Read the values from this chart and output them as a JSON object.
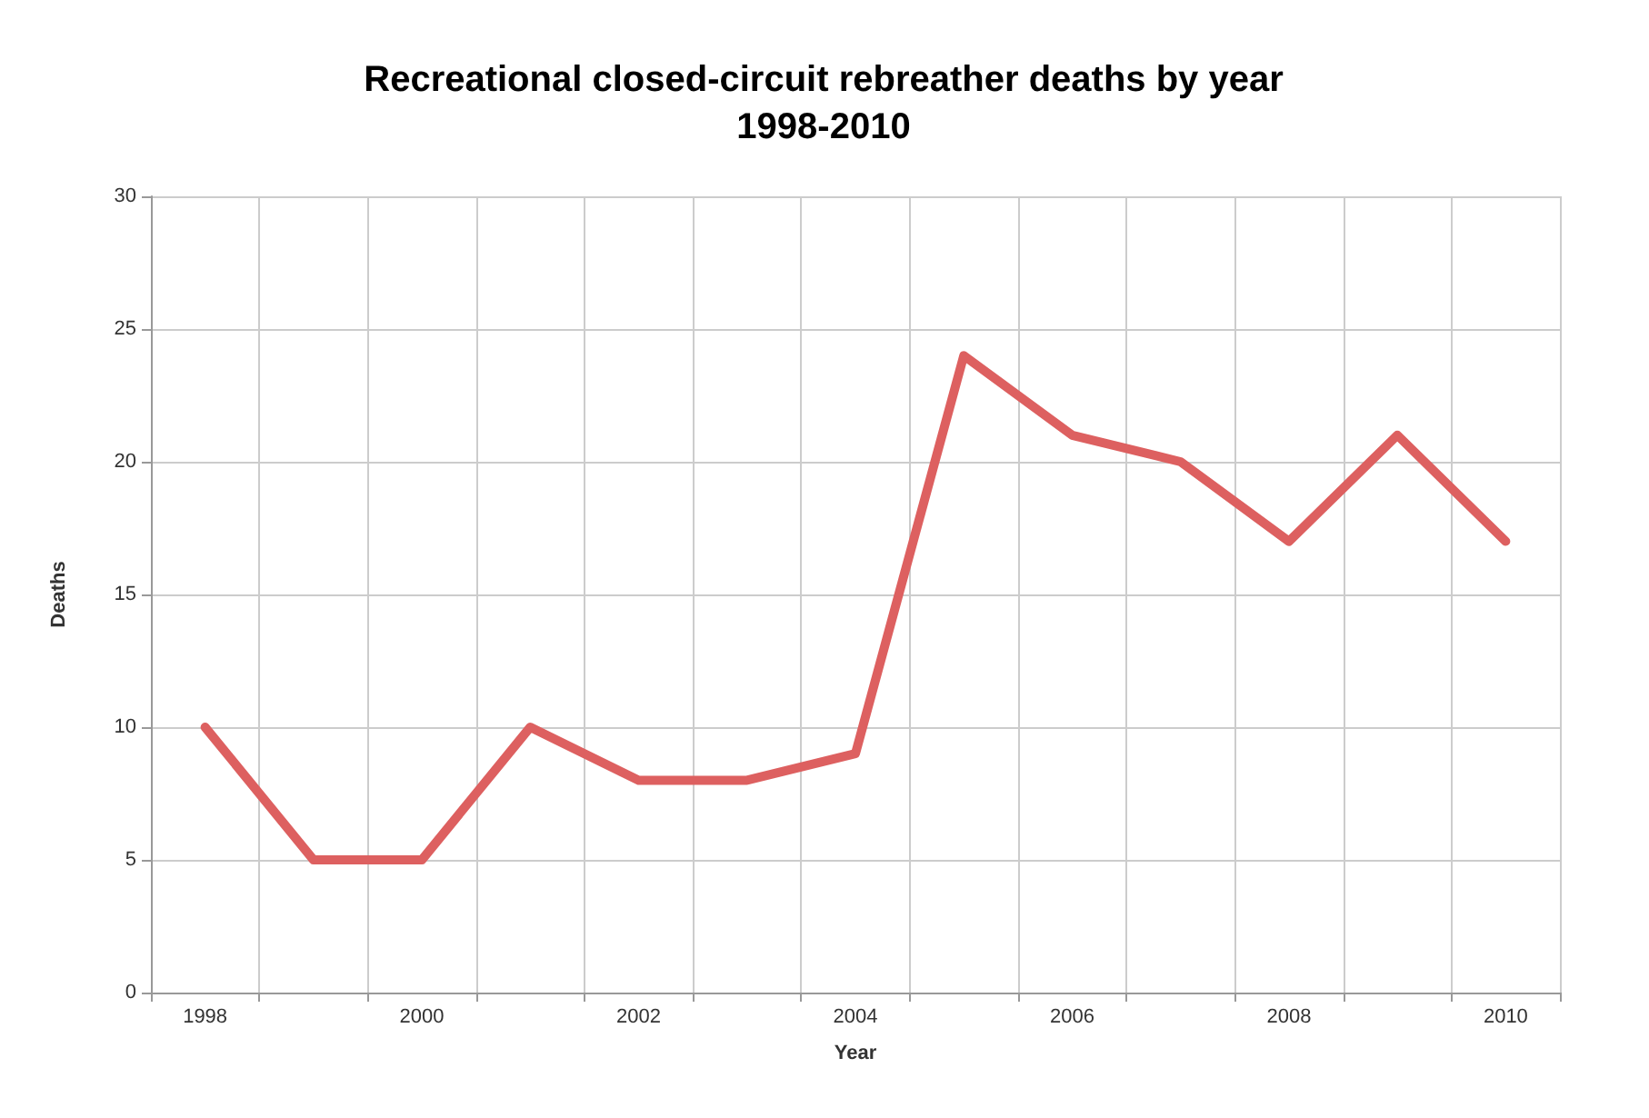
{
  "chart_data": {
    "type": "line",
    "title": "Recreational closed-circuit rebreather deaths by year\n1998-2010",
    "xlabel": "Year",
    "ylabel": "Deaths",
    "categories": [
      "1998",
      null,
      "2000",
      null,
      "2002",
      null,
      "2004",
      null,
      "2006",
      null,
      "2008",
      null,
      "2010"
    ],
    "series": [
      {
        "color": "#dd6060",
        "values": [
          10,
          5,
          5,
          10,
          8,
          8,
          9,
          24,
          21,
          20,
          17,
          21,
          17
        ]
      }
    ],
    "ylim": [
      0,
      30
    ],
    "yticks": [
      0,
      5,
      10,
      15,
      20,
      25,
      30
    ],
    "grid": true,
    "marker": "none",
    "line_style": "solid"
  }
}
